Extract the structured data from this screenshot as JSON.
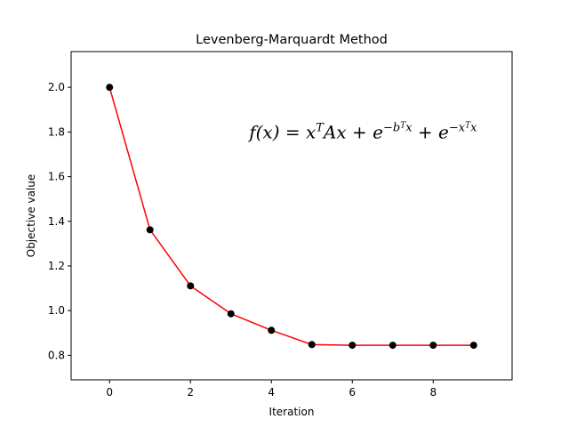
{
  "chart_data": {
    "type": "line",
    "title": "Levenberg-Marquardt Method",
    "xlabel": "Iteration",
    "ylabel": "Objective value",
    "xlim": [
      -0.95,
      9.95
    ],
    "ylim": [
      0.69,
      2.16
    ],
    "xticks": [
      0,
      2,
      4,
      6,
      8
    ],
    "xtick_labels": [
      "0",
      "2",
      "4",
      "6",
      "8"
    ],
    "yticks": [
      0.8,
      1.0,
      1.2,
      1.4,
      1.6,
      1.8,
      2.0
    ],
    "ytick_labels": [
      "0.8",
      "1.0",
      "1.2",
      "1.4",
      "1.6",
      "1.8",
      "2.0"
    ],
    "grid": false,
    "series": [
      {
        "x": [
          0,
          1,
          2,
          3,
          4,
          5,
          6,
          7,
          8,
          9
        ],
        "y": [
          2.0,
          1.362,
          1.111,
          0.986,
          0.912,
          0.848,
          0.845,
          0.845,
          0.845,
          0.845
        ],
        "line_color": "#ff0000",
        "marker_color": "#000000"
      }
    ],
    "annotation": {
      "parts": {
        "lhs": "f(x) = x",
        "sup1": "T",
        "mid1": "Ax + e",
        "sup2": "−b",
        "sup2b": "T",
        "sup2c": "x",
        "mid2": " + e",
        "sup3": "−x",
        "sup3b": "T",
        "sup3c": "x"
      },
      "x": 3.45,
      "y": 1.8
    }
  }
}
